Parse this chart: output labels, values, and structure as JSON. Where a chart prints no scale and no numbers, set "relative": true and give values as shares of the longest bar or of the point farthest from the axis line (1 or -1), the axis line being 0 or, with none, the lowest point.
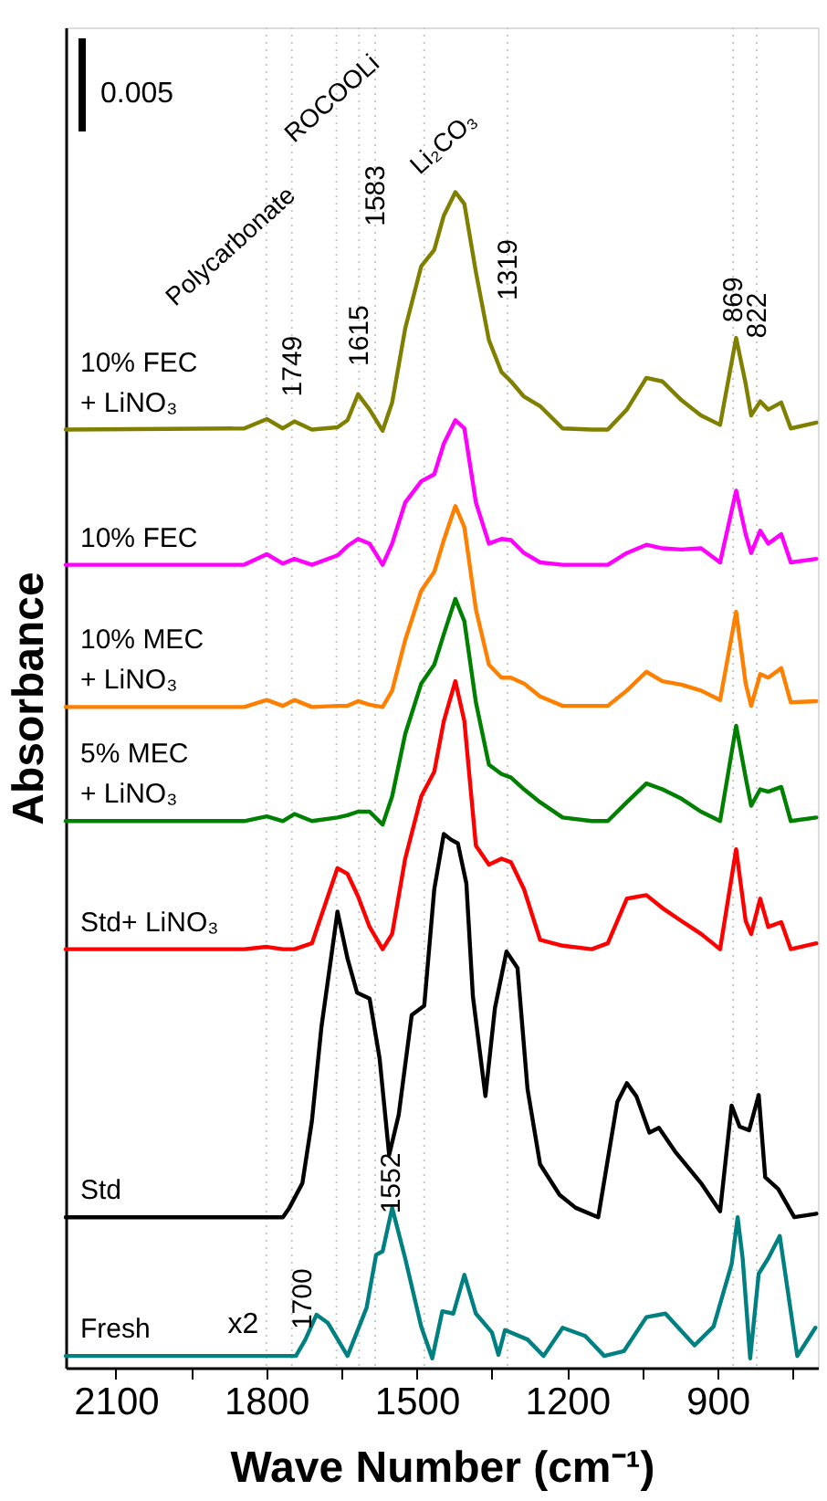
{
  "chart_data": {
    "type": "line",
    "relative": true,
    "xlabel": "Wave Number (cm⁻¹)",
    "ylabel": "Absorbance",
    "xlim": [
      2200,
      700
    ],
    "xticks": [
      2100,
      {
        "value": 1950,
        "label": null
      },
      1800,
      {
        "value": 1650,
        "label": null
      },
      1500,
      {
        "value": 1350,
        "label": null
      },
      1200,
      {
        "value": 1050,
        "label": null
      },
      900,
      {
        "value": 750,
        "label": null
      }
    ],
    "x": [
      2200,
      1844,
      1799,
      1767,
      1744,
      1709,
      1658,
      1638,
      1617,
      1594,
      1568,
      1549,
      1523,
      1491,
      1465,
      1446,
      1423,
      1405,
      1382,
      1356,
      1331,
      1312,
      1286,
      1254,
      1209,
      1151,
      1119,
      1081,
      1042,
      1010,
      972,
      933,
      895,
      863,
      844,
      833,
      815,
      799,
      773,
      754,
      703
    ],
    "series": [
      {
        "name": "10% FEC\n+ LiNO₃",
        "color": "#808000",
        "values": [
          0.798,
          0.799,
          0.807,
          0.799,
          0.805,
          0.798,
          0.8,
          0.806,
          0.828,
          0.815,
          0.797,
          0.821,
          0.884,
          0.937,
          0.951,
          0.98,
          1.0,
          0.99,
          0.932,
          0.874,
          0.847,
          0.839,
          0.826,
          0.818,
          0.799,
          0.798,
          0.798,
          0.815,
          0.842,
          0.839,
          0.823,
          0.81,
          0.802,
          0.876,
          0.837,
          0.81,
          0.822,
          0.815,
          0.821,
          0.799,
          0.804
        ]
      },
      {
        "name": "10% FEC",
        "color": "#ff00ff",
        "values": [
          0.683,
          0.683,
          0.692,
          0.684,
          0.688,
          0.683,
          0.691,
          0.699,
          0.705,
          0.701,
          0.683,
          0.701,
          0.736,
          0.754,
          0.76,
          0.786,
          0.806,
          0.799,
          0.736,
          0.701,
          0.705,
          0.704,
          0.693,
          0.685,
          0.683,
          0.683,
          0.683,
          0.693,
          0.7,
          0.697,
          0.696,
          0.697,
          0.685,
          0.746,
          0.709,
          0.693,
          0.712,
          0.701,
          0.709,
          0.685,
          0.688
        ]
      },
      {
        "name": "10% MEC\n+ LiNO₃",
        "color": "#ff8000",
        "values": [
          0.562,
          0.562,
          0.568,
          0.563,
          0.568,
          0.562,
          0.563,
          0.563,
          0.567,
          0.564,
          0.562,
          0.576,
          0.619,
          0.661,
          0.677,
          0.704,
          0.733,
          0.715,
          0.645,
          0.598,
          0.587,
          0.587,
          0.582,
          0.571,
          0.563,
          0.563,
          0.563,
          0.576,
          0.592,
          0.584,
          0.581,
          0.576,
          0.568,
          0.643,
          0.582,
          0.563,
          0.59,
          0.587,
          0.595,
          0.566,
          0.567
        ]
      },
      {
        "name": "5% MEC\n+ LiNO₃",
        "color": "#008000",
        "values": [
          0.465,
          0.465,
          0.469,
          0.465,
          0.471,
          0.465,
          0.468,
          0.47,
          0.473,
          0.473,
          0.462,
          0.486,
          0.539,
          0.582,
          0.598,
          0.624,
          0.654,
          0.635,
          0.566,
          0.513,
          0.505,
          0.502,
          0.492,
          0.481,
          0.468,
          0.465,
          0.465,
          0.481,
          0.497,
          0.492,
          0.484,
          0.473,
          0.465,
          0.546,
          0.502,
          0.478,
          0.492,
          0.49,
          0.494,
          0.465,
          0.468
        ]
      },
      {
        "name": "Std+ LiNO₃",
        "color": "#ff0000",
        "values": [
          0.356,
          0.356,
          0.358,
          0.356,
          0.356,
          0.361,
          0.425,
          0.42,
          0.401,
          0.375,
          0.356,
          0.369,
          0.433,
          0.486,
          0.507,
          0.55,
          0.584,
          0.55,
          0.444,
          0.428,
          0.433,
          0.43,
          0.407,
          0.364,
          0.359,
          0.356,
          0.361,
          0.399,
          0.402,
          0.391,
          0.38,
          0.369,
          0.356,
          0.441,
          0.38,
          0.369,
          0.399,
          0.375,
          0.379,
          0.356,
          0.361
        ]
      },
      {
        "name": "Std",
        "color": "#000000",
        "x": [
          2200,
          1844,
          1767,
          1754,
          1728,
          1709,
          1690,
          1671,
          1658,
          1638,
          1619,
          1594,
          1574,
          1555,
          1536,
          1510,
          1485,
          1465,
          1446,
          1431,
          1418,
          1401,
          1388,
          1363,
          1344,
          1321,
          1299,
          1279,
          1254,
          1215,
          1183,
          1138,
          1100,
          1081,
          1062,
          1036,
          1017,
          985,
          933,
          895,
          872,
          856,
          837,
          818,
          805,
          779,
          747,
          703
        ],
        "values": [
          0.128,
          0.128,
          0.128,
          0.136,
          0.157,
          0.21,
          0.29,
          0.348,
          0.388,
          0.348,
          0.319,
          0.314,
          0.263,
          0.181,
          0.215,
          0.3,
          0.308,
          0.407,
          0.454,
          0.449,
          0.446,
          0.412,
          0.316,
          0.231,
          0.306,
          0.354,
          0.34,
          0.237,
          0.173,
          0.147,
          0.136,
          0.128,
          0.226,
          0.242,
          0.231,
          0.2,
          0.204,
          0.184,
          0.157,
          0.133,
          0.223,
          0.205,
          0.202,
          0.232,
          0.162,
          0.152,
          0.128,
          0.131
        ]
      },
      {
        "name": "Fresh",
        "color": "#008080",
        "x": [
          2200,
          1741,
          1722,
          1700,
          1677,
          1638,
          1600,
          1581,
          1568,
          1549,
          1523,
          1491,
          1469,
          1449,
          1427,
          1405,
          1382,
          1350,
          1337,
          1324,
          1279,
          1247,
          1209,
          1164,
          1126,
          1087,
          1042,
          1004,
          946,
          908,
          872,
          860,
          850,
          835,
          818,
          799,
          776,
          741,
          705
        ],
        "values": [
          0.01,
          0.01,
          0.024,
          0.045,
          0.038,
          0.01,
          0.051,
          0.096,
          0.099,
          0.136,
          0.093,
          0.035,
          0.008,
          0.048,
          0.046,
          0.079,
          0.046,
          0.03,
          0.011,
          0.032,
          0.024,
          0.01,
          0.034,
          0.027,
          0.01,
          0.014,
          0.043,
          0.046,
          0.019,
          0.035,
          0.088,
          0.128,
          0.093,
          0.008,
          0.08,
          0.093,
          0.112,
          0.01,
          0.034
        ]
      }
    ],
    "ref_lines": [
      {
        "axis": "x",
        "value": 1800,
        "color": "#c8c8c8",
        "line_style": "dotted"
      },
      {
        "axis": "x",
        "value": 1749,
        "color": "#c8c8c8",
        "line_style": "dotted"
      },
      {
        "axis": "x",
        "value": 1660,
        "color": "#c8c8c8",
        "line_style": "dotted"
      },
      {
        "axis": "x",
        "value": 1615,
        "color": "#c8c8c8",
        "line_style": "dotted"
      },
      {
        "axis": "x",
        "value": 1583,
        "color": "#c8c8c8",
        "line_style": "dotted"
      },
      {
        "axis": "x",
        "value": 1485,
        "color": "#c8c8c8",
        "line_style": "dotted"
      },
      {
        "axis": "x",
        "value": 1319,
        "color": "#c8c8c8",
        "line_style": "dotted"
      },
      {
        "axis": "x",
        "value": 869,
        "color": "#c8c8c8",
        "line_style": "dotted"
      },
      {
        "axis": "x",
        "value": 822,
        "color": "#c8c8c8",
        "line_style": "dotted"
      }
    ],
    "annotations": [
      "0.005",
      {
        "text": "Polycarbonate",
        "x": 1749,
        "y": 1.0
      },
      {
        "text": "ROCOOLi",
        "x": 1754,
        "y": 1.046
      },
      {
        "text": "Li₂CO₃",
        "x": 1504,
        "y": 1.019
      },
      {
        "text": "1749",
        "x": 1749,
        "y": 0.826
      },
      {
        "text": "1615",
        "x": 1615,
        "y": 0.852
      },
      {
        "text": "1583",
        "x": 1583,
        "y": 0.971
      },
      {
        "text": "1319",
        "x": 1319,
        "y": 0.908
      },
      {
        "text": "869",
        "x": 869,
        "y": 0.889
      },
      {
        "text": "822",
        "x": 822,
        "y": 0.885
      },
      {
        "text": "1700",
        "x": 1700,
        "y": 0.045
      },
      {
        "text": "1552",
        "x": 1552,
        "y": 0.131
      },
      "x2"
    ],
    "legend": false,
    "grid": false,
    "marker": "none",
    "line_style": "solid"
  }
}
